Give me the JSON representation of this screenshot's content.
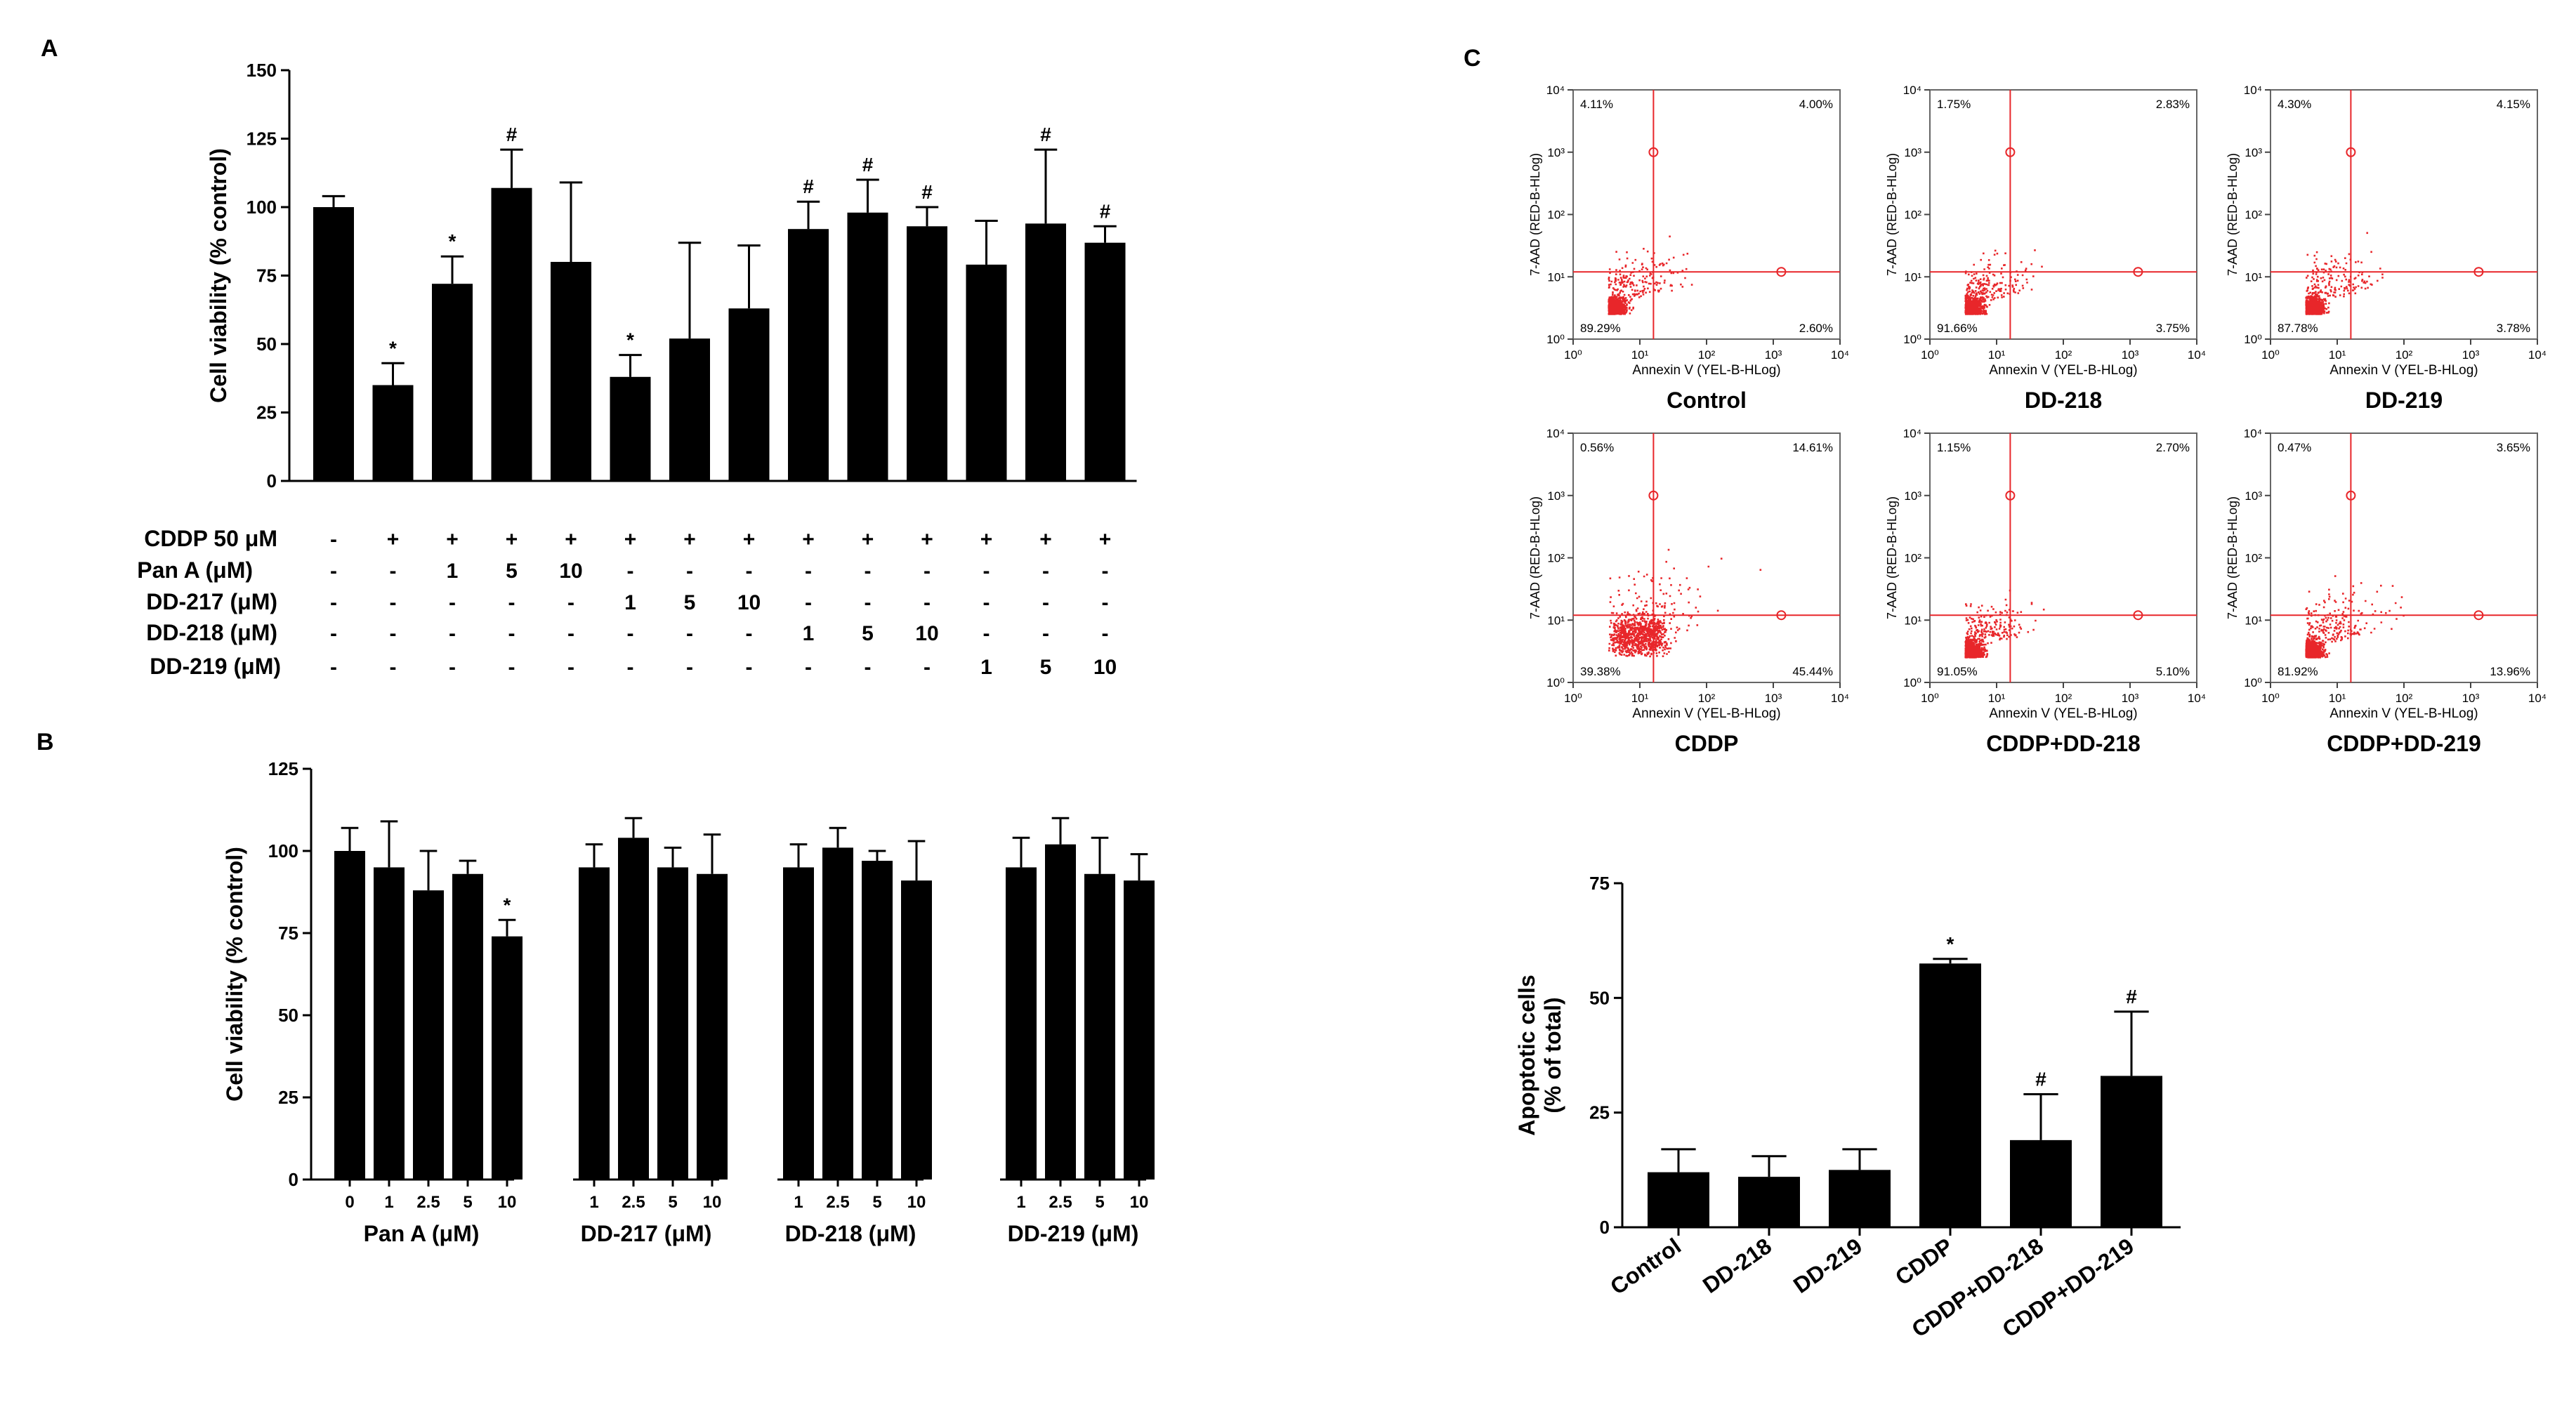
{
  "figure": {
    "panel_labels": {
      "a": "A",
      "b": "B",
      "c": "C"
    }
  },
  "chart_data": [
    {
      "id": "A",
      "type": "bar",
      "ylabel": "Cell viability (% control)",
      "ylim": [
        0,
        150
      ],
      "yticks": [
        0,
        25,
        50,
        75,
        100,
        125,
        150
      ],
      "values": [
        100,
        35,
        72,
        107,
        80,
        38,
        52,
        63,
        92,
        98,
        93,
        79,
        94,
        87
      ],
      "errors": [
        4,
        8,
        10,
        14,
        29,
        8,
        35,
        23,
        10,
        12,
        7,
        16,
        27,
        6
      ],
      "annotations": [
        "",
        "*",
        "*",
        "#",
        "",
        "*",
        "",
        "",
        "#",
        "#",
        "#",
        "",
        "#",
        "#"
      ],
      "condition_rows": [
        {
          "label": "CDDP 50 μM",
          "cells": [
            "-",
            "+",
            "+",
            "+",
            "+",
            "+",
            "+",
            "+",
            "+",
            "+",
            "+",
            "+",
            "+",
            "+"
          ]
        },
        {
          "label": "Pan A (μM)",
          "cells": [
            "-",
            "-",
            "1",
            "5",
            "10",
            "-",
            "-",
            "-",
            "-",
            "-",
            "-",
            "-",
            "-",
            "-"
          ]
        },
        {
          "label": "DD-217 (μM)",
          "cells": [
            "-",
            "-",
            "-",
            "-",
            "-",
            "1",
            "5",
            "10",
            "-",
            "-",
            "-",
            "-",
            "-",
            "-"
          ]
        },
        {
          "label": "DD-218 (μM)",
          "cells": [
            "-",
            "-",
            "-",
            "-",
            "-",
            "-",
            "-",
            "-",
            "1",
            "5",
            "10",
            "-",
            "-",
            "-"
          ]
        },
        {
          "label": "DD-219 (μM)",
          "cells": [
            "-",
            "-",
            "-",
            "-",
            "-",
            "-",
            "-",
            "-",
            "-",
            "-",
            "-",
            "1",
            "5",
            "10"
          ]
        }
      ]
    },
    {
      "id": "B",
      "type": "bar",
      "ylabel": "Cell viability (% control)",
      "ylim": [
        0,
        125
      ],
      "yticks": [
        0,
        25,
        50,
        75,
        100,
        125
      ],
      "groups": [
        {
          "name": "Pan A (μM)",
          "categories": [
            "0",
            "1",
            "2.5",
            "5",
            "10"
          ],
          "values": [
            100,
            95,
            88,
            93,
            74
          ],
          "errors": [
            7,
            14,
            12,
            4,
            5
          ],
          "annotations": [
            "",
            "",
            "",
            "",
            "*"
          ]
        },
        {
          "name": "DD-217 (μM)",
          "categories": [
            "1",
            "2.5",
            "5",
            "10"
          ],
          "values": [
            95,
            104,
            95,
            93
          ],
          "errors": [
            7,
            6,
            6,
            12
          ],
          "annotations": [
            "",
            "",
            "",
            ""
          ]
        },
        {
          "name": "DD-218 (μM)",
          "categories": [
            "1",
            "2.5",
            "5",
            "10"
          ],
          "values": [
            95,
            101,
            97,
            91
          ],
          "errors": [
            7,
            6,
            3,
            12
          ],
          "annotations": [
            "",
            "",
            "",
            ""
          ]
        },
        {
          "name": "DD-219 (μM)",
          "categories": [
            "1",
            "2.5",
            "5",
            "10"
          ],
          "values": [
            95,
            102,
            93,
            91
          ],
          "errors": [
            9,
            8,
            11,
            8
          ],
          "annotations": [
            "",
            "",
            "",
            ""
          ]
        }
      ]
    },
    {
      "id": "C-flow",
      "type": "scatter",
      "xlabel": "Annexin V (YEL-B-HLog)",
      "ylabel": "7-AAD (RED-B-HLog)",
      "axis_scale": "log",
      "xlim": [
        1,
        10000
      ],
      "ylim": [
        1,
        10000
      ],
      "tick_labels": [
        "10⁰",
        "10¹",
        "10²",
        "10³",
        "10⁴"
      ],
      "gate": {
        "x": 16,
        "y": 12
      },
      "plots": [
        {
          "name": "Control",
          "quadrants": {
            "ul": "4.11%",
            "ur": "4.00%",
            "ll": "89.29%",
            "lr": "2.60%"
          },
          "spread": 0.9
        },
        {
          "name": "DD-218",
          "quadrants": {
            "ul": "1.75%",
            "ur": "2.83%",
            "ll": "91.66%",
            "lr": "3.75%"
          },
          "spread": 0.8
        },
        {
          "name": "DD-219",
          "quadrants": {
            "ul": "4.30%",
            "ur": "4.15%",
            "ll": "87.78%",
            "lr": "3.78%"
          },
          "spread": 0.85
        },
        {
          "name": "CDDP",
          "quadrants": {
            "ul": "0.56%",
            "ur": "14.61%",
            "ll": "39.38%",
            "lr": "45.44%"
          },
          "spread": 1.3
        },
        {
          "name": "CDDP+DD-218",
          "quadrants": {
            "ul": "1.15%",
            "ur": "2.70%",
            "ll": "91.05%",
            "lr": "5.10%"
          },
          "spread": 0.8
        },
        {
          "name": "CDDP+DD-219",
          "quadrants": {
            "ul": "0.47%",
            "ur": "3.65%",
            "ll": "81.92%",
            "lr": "13.96%"
          },
          "spread": 1.0
        }
      ]
    },
    {
      "id": "C-bar",
      "type": "bar",
      "ylabel": "Apoptotic cells",
      "ylabel2": "(% of total)",
      "ylim": [
        0,
        75
      ],
      "yticks": [
        0,
        25,
        50,
        75
      ],
      "categories": [
        "Control",
        "DD-218",
        "DD-219",
        "CDDP",
        "CDDP+DD-218",
        "CDDP+DD-219"
      ],
      "values": [
        12,
        11,
        12.5,
        57.5,
        19,
        33
      ],
      "errors": [
        5,
        4.5,
        4.5,
        1,
        10,
        14
      ],
      "annotations": [
        "",
        "",
        "",
        "*",
        "#",
        "#"
      ]
    }
  ]
}
